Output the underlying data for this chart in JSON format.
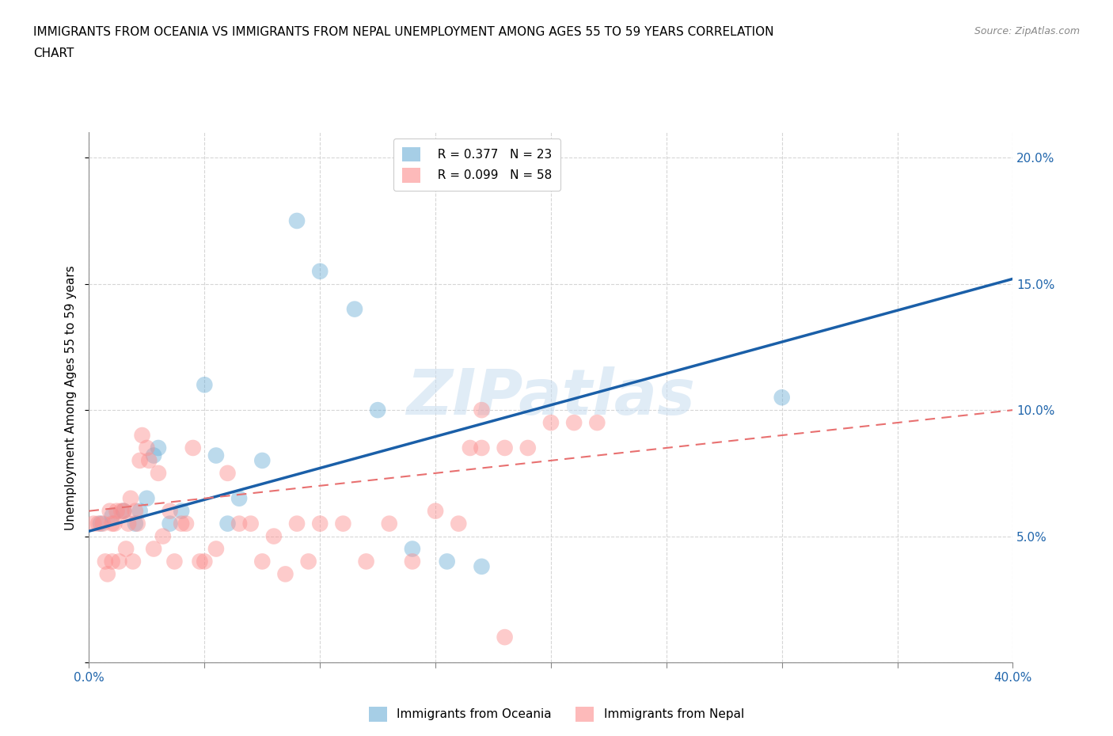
{
  "title_line1": "IMMIGRANTS FROM OCEANIA VS IMMIGRANTS FROM NEPAL UNEMPLOYMENT AMONG AGES 55 TO 59 YEARS CORRELATION",
  "title_line2": "CHART",
  "source": "Source: ZipAtlas.com",
  "ylabel": "Unemployment Among Ages 55 to 59 years",
  "xlim": [
    0.0,
    0.4
  ],
  "ylim": [
    0.0,
    0.21
  ],
  "xticks": [
    0.0,
    0.05,
    0.1,
    0.15,
    0.2,
    0.25,
    0.3,
    0.35,
    0.4
  ],
  "yticks": [
    0.0,
    0.05,
    0.1,
    0.15,
    0.2
  ],
  "legend_r_oceania": "R = 0.377",
  "legend_n_oceania": "N = 23",
  "legend_r_nepal": "R = 0.099",
  "legend_n_nepal": "N = 58",
  "oceania_color": "#6baed6",
  "nepal_color": "#fc8d8d",
  "oceania_line_color": "#1a5fa8",
  "nepal_line_color": "#e87070",
  "watermark": "ZIPatlas",
  "oceania_line_x": [
    0.0,
    0.4
  ],
  "oceania_line_y": [
    0.052,
    0.152
  ],
  "nepal_line_x": [
    0.0,
    0.4
  ],
  "nepal_line_y": [
    0.06,
    0.1
  ],
  "oceania_x": [
    0.005,
    0.01,
    0.015,
    0.02,
    0.022,
    0.025,
    0.028,
    0.03,
    0.035,
    0.04,
    0.05,
    0.055,
    0.06,
    0.065,
    0.075,
    0.09,
    0.1,
    0.115,
    0.125,
    0.14,
    0.155,
    0.17,
    0.3
  ],
  "oceania_y": [
    0.055,
    0.058,
    0.06,
    0.055,
    0.06,
    0.065,
    0.082,
    0.085,
    0.055,
    0.06,
    0.11,
    0.082,
    0.055,
    0.065,
    0.08,
    0.175,
    0.155,
    0.14,
    0.1,
    0.045,
    0.04,
    0.038,
    0.105
  ],
  "nepal_x": [
    0.002,
    0.004,
    0.006,
    0.007,
    0.008,
    0.009,
    0.01,
    0.01,
    0.011,
    0.012,
    0.013,
    0.014,
    0.015,
    0.016,
    0.017,
    0.018,
    0.019,
    0.02,
    0.021,
    0.022,
    0.023,
    0.025,
    0.026,
    0.028,
    0.03,
    0.032,
    0.035,
    0.037,
    0.04,
    0.042,
    0.045,
    0.048,
    0.05,
    0.055,
    0.06,
    0.065,
    0.07,
    0.075,
    0.08,
    0.085,
    0.09,
    0.095,
    0.1,
    0.11,
    0.12,
    0.13,
    0.14,
    0.15,
    0.16,
    0.165,
    0.17,
    0.18,
    0.19,
    0.2,
    0.21,
    0.22,
    0.18,
    0.17
  ],
  "nepal_y": [
    0.055,
    0.055,
    0.055,
    0.04,
    0.035,
    0.06,
    0.055,
    0.04,
    0.055,
    0.06,
    0.04,
    0.06,
    0.06,
    0.045,
    0.055,
    0.065,
    0.04,
    0.06,
    0.055,
    0.08,
    0.09,
    0.085,
    0.08,
    0.045,
    0.075,
    0.05,
    0.06,
    0.04,
    0.055,
    0.055,
    0.085,
    0.04,
    0.04,
    0.045,
    0.075,
    0.055,
    0.055,
    0.04,
    0.05,
    0.035,
    0.055,
    0.04,
    0.055,
    0.055,
    0.04,
    0.055,
    0.04,
    0.06,
    0.055,
    0.085,
    0.085,
    0.085,
    0.085,
    0.095,
    0.095,
    0.095,
    0.01,
    0.1
  ]
}
